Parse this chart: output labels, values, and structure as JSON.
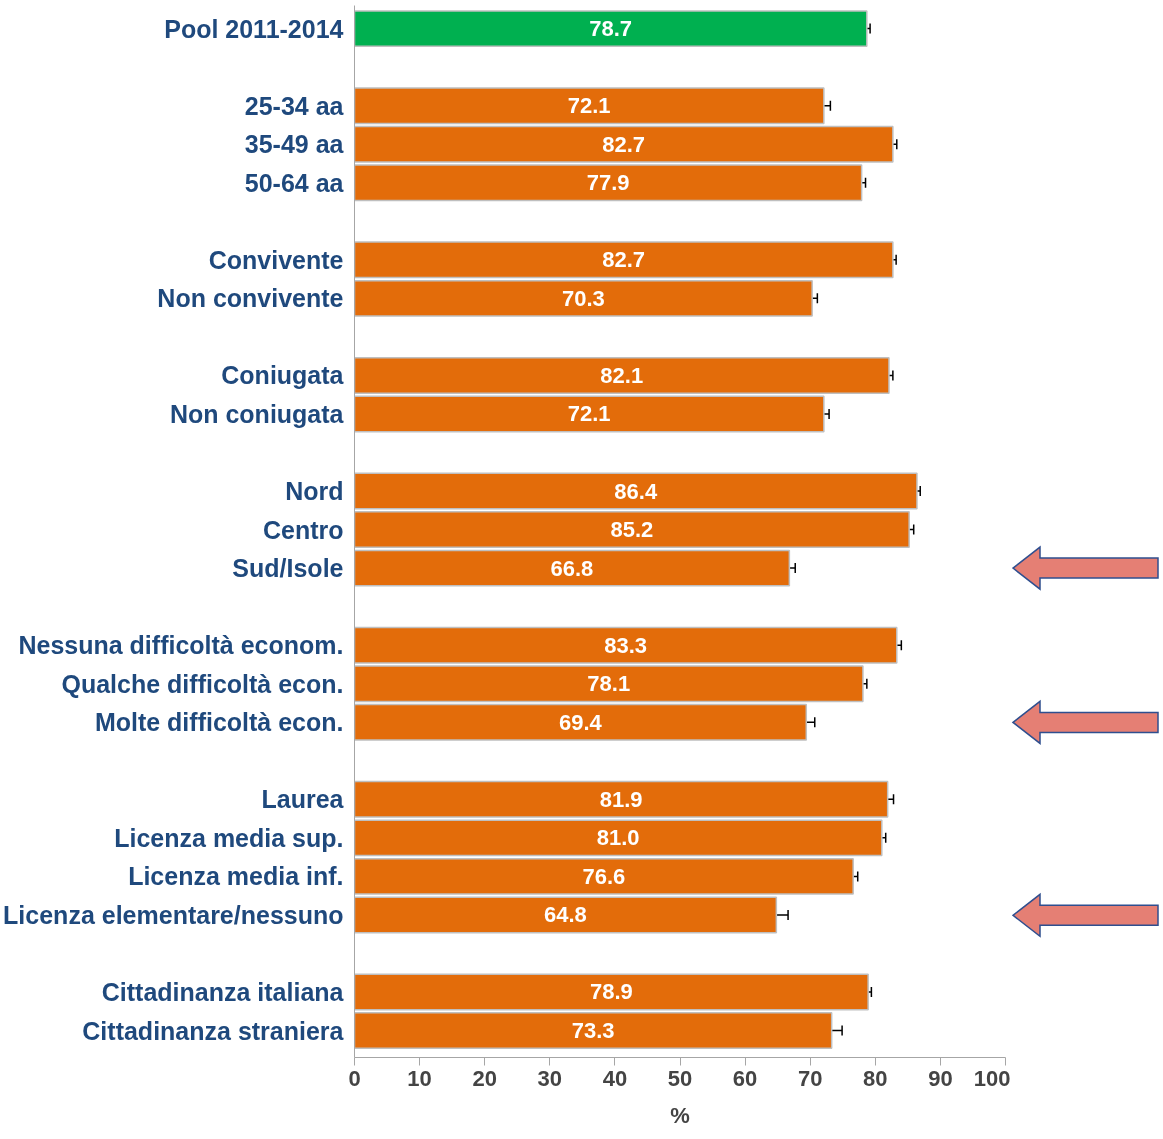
{
  "chart_data": {
    "type": "bar",
    "orientation": "horizontal",
    "xlabel": "%",
    "categories": [
      "Pool 2011-2014",
      null,
      "25-34 aa",
      "35-49 aa",
      "50-64 aa",
      null,
      "Convivente",
      "Non convivente",
      null,
      "Coniugata",
      "Non coniugata",
      null,
      "Nord",
      "Centro",
      "Sud/Isole",
      null,
      "Nessuna difficoltà econom.",
      "Qualche difficoltà econ.",
      "Molte difficoltà econ.",
      null,
      "Laurea",
      "Licenza media sup.",
      "Licenza media inf.",
      "Licenza elementare/nessuno",
      null,
      "Cittadinanza italiana",
      "Cittadinanza straniera"
    ],
    "values": [
      78.7,
      null,
      72.1,
      82.7,
      77.9,
      null,
      82.7,
      70.3,
      null,
      82.1,
      72.1,
      null,
      86.4,
      85.2,
      66.8,
      null,
      83.3,
      78.1,
      69.4,
      null,
      81.9,
      81.0,
      76.6,
      64.8,
      null,
      78.9,
      73.3
    ],
    "errors": [
      0.5,
      null,
      1.0,
      0.6,
      0.6,
      null,
      0.5,
      0.8,
      null,
      0.6,
      0.8,
      null,
      0.5,
      0.7,
      0.9,
      null,
      0.7,
      0.6,
      1.3,
      null,
      0.9,
      0.6,
      0.7,
      1.8,
      null,
      0.5,
      1.6
    ],
    "colors": [
      "#00b050",
      null,
      "#e36c0a",
      "#e36c0a",
      "#e36c0a",
      null,
      "#e36c0a",
      "#e36c0a",
      null,
      "#e36c0a",
      "#e36c0a",
      null,
      "#e36c0a",
      "#e36c0a",
      "#e36c0a",
      null,
      "#e36c0a",
      "#e36c0a",
      "#e36c0a",
      null,
      "#e36c0a",
      "#e36c0a",
      "#e36c0a",
      "#e36c0a",
      null,
      "#e36c0a",
      "#e36c0a"
    ],
    "xlim": [
      0,
      100
    ],
    "xticks": [
      0,
      10,
      20,
      30,
      40,
      50,
      60,
      70,
      80,
      90,
      100
    ],
    "grid": false,
    "value_labels": [
      "78.7",
      null,
      "72.1",
      "82.7",
      "77.9",
      null,
      "82.7",
      "70.3",
      null,
      "82.1",
      "72.1",
      null,
      "86.4",
      "85.2",
      "66.8",
      null,
      "83.3",
      "78.1",
      "69.4",
      null,
      "81.9",
      "81.0",
      "76.6",
      "64.8",
      null,
      "78.9",
      "73.3"
    ]
  }
}
